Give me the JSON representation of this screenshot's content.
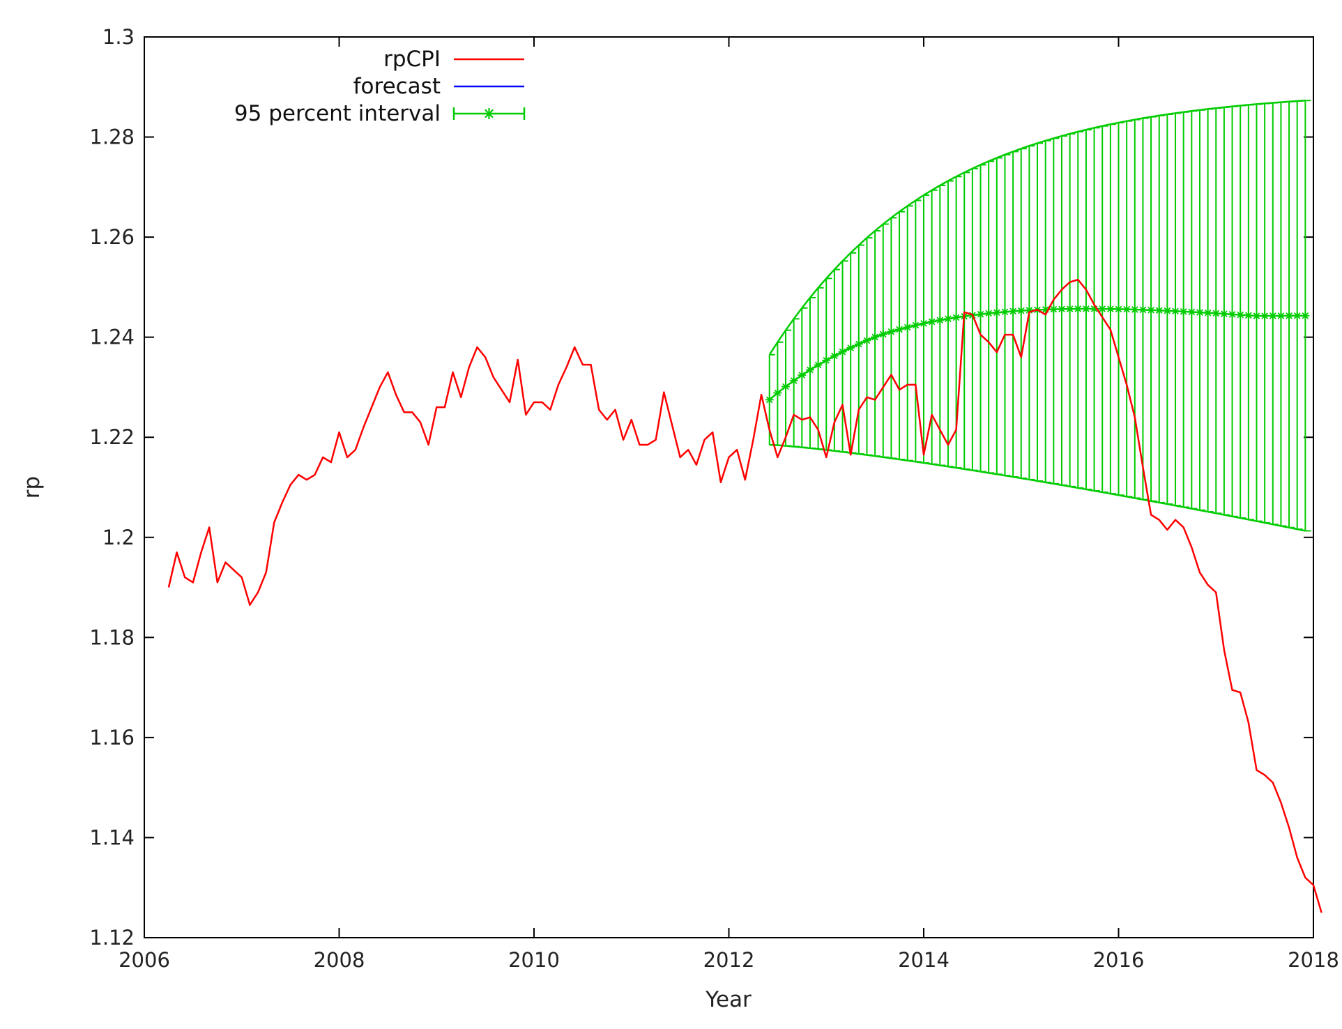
{
  "chart_data": {
    "type": "line",
    "title": "",
    "xlabel": "Year",
    "ylabel": "rp",
    "xlim": [
      2006,
      2018
    ],
    "ylim": [
      1.12,
      1.3
    ],
    "xticks": [
      "2006",
      "2008",
      "2010",
      "2012",
      "2014",
      "2016",
      "2018"
    ],
    "yticks": [
      "1.12",
      "1.14",
      "1.16",
      "1.18",
      "1.2",
      "1.22",
      "1.24",
      "1.26",
      "1.28",
      "1.3"
    ],
    "legend_position": "top-left",
    "grid": false,
    "series": [
      {
        "name": "rpCPI",
        "color": "#ff0000",
        "kind": "line",
        "start": 2006.25,
        "step": 0.0833333,
        "values": [
          1.19,
          1.197,
          1.192,
          1.191,
          1.197,
          1.202,
          1.191,
          1.195,
          1.1935,
          1.192,
          1.1865,
          1.189,
          1.193,
          1.203,
          1.207,
          1.2105,
          1.2125,
          1.2115,
          1.2125,
          1.216,
          1.215,
          1.221,
          1.216,
          1.2175,
          1.222,
          1.226,
          1.23,
          1.233,
          1.2285,
          1.225,
          1.225,
          1.223,
          1.2185,
          1.226,
          1.226,
          1.233,
          1.228,
          1.234,
          1.238,
          1.236,
          1.232,
          1.2295,
          1.227,
          1.2355,
          1.2245,
          1.227,
          1.227,
          1.2255,
          1.2305,
          1.234,
          1.238,
          1.2345,
          1.2345,
          1.2255,
          1.2235,
          1.2255,
          1.2195,
          1.2235,
          1.2185,
          1.2185,
          1.2195,
          1.229,
          1.2225,
          1.216,
          1.2175,
          1.2145,
          1.2195,
          1.221,
          1.211,
          1.216,
          1.2175,
          1.2115,
          1.2195,
          1.2285,
          1.2215,
          1.216,
          1.22,
          1.2245,
          1.2235,
          1.224,
          1.2215,
          1.216,
          1.223,
          1.2265,
          1.2165,
          1.2255,
          1.228,
          1.2275,
          1.23,
          1.2325,
          1.2295,
          1.2305,
          1.2305,
          1.2165,
          1.2245,
          1.2215,
          1.2185,
          1.2215,
          1.245,
          1.2445,
          1.2405,
          1.239,
          1.237,
          1.2405,
          1.2405,
          1.236,
          1.245,
          1.2455,
          1.2445,
          1.2475,
          1.2495,
          1.251,
          1.2515,
          1.2495,
          1.2465,
          1.244,
          1.2415,
          1.236,
          1.2305,
          1.224,
          1.214,
          1.2045,
          1.2035,
          1.2015,
          1.2035,
          1.202,
          1.198,
          1.193,
          1.1905,
          1.189,
          1.1775,
          1.1695,
          1.169,
          1.163,
          1.1535,
          1.1525,
          1.151,
          1.147,
          1.142,
          1.136,
          1.132,
          1.1305,
          1.125
        ]
      },
      {
        "name": "forecast",
        "color": "#0000ff",
        "kind": "line",
        "values": []
      },
      {
        "name": "95 percent interval",
        "color": "#00cc00",
        "kind": "errorbars",
        "start": 2012.4167,
        "step": 0.0833333,
        "count": 67,
        "center_start": 1.2275,
        "center_end": 1.2443,
        "center_mid_peak": 1.2465,
        "lower_start": 1.2185,
        "lower_end": 1.2013,
        "upper_start": 1.2365,
        "upper_end": 1.2873
      }
    ]
  }
}
